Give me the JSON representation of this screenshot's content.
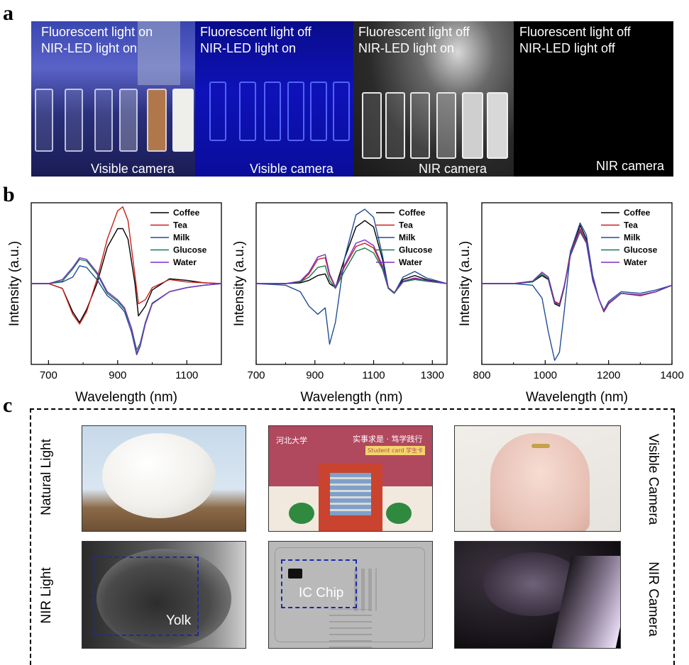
{
  "labels": {
    "a": "a",
    "b": "b",
    "c": "c"
  },
  "panel_a": [
    {
      "line1": "Fluorescent light on",
      "line2": "NIR-LED light on",
      "camera": "Visible camera"
    },
    {
      "line1": "Fluorescent light off",
      "line2": "NIR-LED light on",
      "camera": "Visible camera"
    },
    {
      "line1": "Fluorescent light off",
      "line2": "NIR-LED light on",
      "camera": "NIR camera"
    },
    {
      "line1": "Fluorescent light off",
      "line2": "NIR-LED light off",
      "camera": "NIR camera"
    }
  ],
  "colors": {
    "Coffee": "#000000",
    "Tea": "#cc1f1a",
    "Milk": "#1f4e96",
    "Glucose": "#137a4f",
    "Water": "#7b2fbf"
  },
  "chart_data": [
    {
      "type": "line",
      "xlabel": "Wavelength (nm)",
      "ylabel": "Intensity (a.u.)",
      "xlim": [
        650,
        1200
      ],
      "ylim": [
        -1.0,
        1.0
      ],
      "xticks": [
        700,
        900,
        1100
      ],
      "legend_position": "top-right",
      "series": [
        {
          "name": "Coffee",
          "x": [
            650,
            700,
            740,
            770,
            790,
            810,
            840,
            870,
            900,
            915,
            930,
            950,
            960,
            980,
            1000,
            1050,
            1100,
            1150,
            1200
          ],
          "y": [
            0,
            0,
            -0.06,
            -0.35,
            -0.48,
            -0.32,
            0,
            0.45,
            0.68,
            0.68,
            0.55,
            0,
            -0.4,
            -0.28,
            -0.08,
            0.06,
            0.04,
            0.01,
            0
          ]
        },
        {
          "name": "Tea",
          "x": [
            650,
            700,
            740,
            770,
            790,
            810,
            840,
            870,
            900,
            915,
            930,
            950,
            960,
            980,
            1000,
            1050,
            1100,
            1150,
            1200
          ],
          "y": [
            0,
            0,
            -0.06,
            -0.38,
            -0.5,
            -0.35,
            0.05,
            0.55,
            0.9,
            0.95,
            0.78,
            0.1,
            -0.25,
            -0.2,
            -0.05,
            0.05,
            0.02,
            0.01,
            0
          ]
        },
        {
          "name": "Milk",
          "x": [
            650,
            700,
            740,
            770,
            790,
            810,
            840,
            870,
            900,
            920,
            940,
            955,
            965,
            980,
            1000,
            1050,
            1100,
            1150,
            1200
          ],
          "y": [
            0,
            0,
            0.02,
            0.08,
            0.22,
            0.2,
            0.05,
            -0.15,
            -0.25,
            -0.35,
            -0.6,
            -0.88,
            -0.78,
            -0.5,
            -0.25,
            -0.1,
            -0.05,
            -0.02,
            0
          ]
        },
        {
          "name": "Glucose",
          "x": [
            650,
            700,
            740,
            770,
            790,
            810,
            840,
            870,
            900,
            920,
            940,
            955,
            965,
            980,
            1000,
            1050,
            1100,
            1150,
            1200
          ],
          "y": [
            0,
            0,
            0.03,
            0.18,
            0.3,
            0.28,
            0.12,
            -0.12,
            -0.22,
            -0.32,
            -0.55,
            -0.82,
            -0.74,
            -0.48,
            -0.24,
            -0.1,
            -0.05,
            -0.02,
            0
          ]
        },
        {
          "name": "Water",
          "x": [
            650,
            700,
            740,
            770,
            790,
            810,
            840,
            870,
            900,
            920,
            940,
            955,
            965,
            980,
            1000,
            1050,
            1100,
            1150,
            1200
          ],
          "y": [
            0,
            0,
            0.05,
            0.2,
            0.32,
            0.3,
            0.14,
            -0.1,
            -0.2,
            -0.3,
            -0.55,
            -0.86,
            -0.77,
            -0.5,
            -0.25,
            -0.1,
            -0.05,
            -0.02,
            0
          ]
        }
      ]
    },
    {
      "type": "line",
      "xlabel": "Wavelength (nm)",
      "ylabel": "Intensity (a.u.)",
      "xlim": [
        700,
        1350
      ],
      "ylim": [
        -1.0,
        1.0
      ],
      "xticks": [
        700,
        900,
        1100,
        1300
      ],
      "legend_position": "top-right",
      "series": [
        {
          "name": "Coffee",
          "x": [
            700,
            800,
            850,
            880,
            910,
            935,
            950,
            970,
            1000,
            1040,
            1070,
            1100,
            1130,
            1150,
            1170,
            1200,
            1240,
            1280,
            1350
          ],
          "y": [
            0,
            0,
            0.01,
            0.04,
            0.1,
            0.12,
            0.0,
            -0.05,
            0.3,
            0.7,
            0.78,
            0.7,
            0.3,
            -0.05,
            -0.12,
            0.05,
            0.1,
            0.05,
            0
          ]
        },
        {
          "name": "Tea",
          "x": [
            700,
            800,
            850,
            880,
            910,
            935,
            950,
            970,
            1000,
            1040,
            1070,
            1100,
            1130,
            1150,
            1170,
            1200,
            1240,
            1280,
            1350
          ],
          "y": [
            0,
            0,
            0.02,
            0.12,
            0.3,
            0.32,
            0.1,
            -0.05,
            0.2,
            0.46,
            0.5,
            0.44,
            0.2,
            -0.06,
            -0.12,
            0.02,
            0.06,
            0.03,
            0
          ]
        },
        {
          "name": "Milk",
          "x": [
            700,
            800,
            850,
            880,
            910,
            935,
            950,
            970,
            1000,
            1040,
            1070,
            1100,
            1130,
            1150,
            1170,
            1200,
            1240,
            1280,
            1350
          ],
          "y": [
            0,
            -0.02,
            -0.1,
            -0.28,
            -0.38,
            -0.3,
            -0.75,
            -0.48,
            0.3,
            0.85,
            0.92,
            0.82,
            0.35,
            -0.05,
            -0.12,
            0.08,
            0.15,
            0.07,
            0
          ]
        },
        {
          "name": "Glucose",
          "x": [
            700,
            800,
            850,
            880,
            910,
            935,
            950,
            970,
            1000,
            1040,
            1070,
            1100,
            1130,
            1150,
            1170,
            1200,
            1240,
            1280,
            1350
          ],
          "y": [
            0,
            0,
            0.02,
            0.08,
            0.2,
            0.22,
            0.04,
            -0.06,
            0.15,
            0.4,
            0.44,
            0.38,
            0.18,
            -0.06,
            -0.12,
            0.02,
            0.05,
            0.03,
            0
          ]
        },
        {
          "name": "Water",
          "x": [
            700,
            800,
            850,
            880,
            910,
            935,
            950,
            970,
            1000,
            1040,
            1070,
            1100,
            1130,
            1150,
            1170,
            1200,
            1240,
            1280,
            1350
          ],
          "y": [
            0,
            0,
            0.03,
            0.14,
            0.33,
            0.36,
            0.12,
            -0.04,
            0.22,
            0.5,
            0.54,
            0.47,
            0.22,
            -0.05,
            -0.11,
            0.03,
            0.07,
            0.04,
            0
          ]
        }
      ]
    },
    {
      "type": "line",
      "xlabel": "Wavelength (nm)",
      "ylabel": "Intensity (a.u.)",
      "xlim": [
        800,
        1400
      ],
      "ylim": [
        -1.0,
        1.0
      ],
      "xticks": [
        800,
        1000,
        1200,
        1400
      ],
      "legend_position": "top-right",
      "series": [
        {
          "name": "Coffee",
          "x": [
            800,
            900,
            960,
            990,
            1010,
            1030,
            1045,
            1060,
            1080,
            1110,
            1130,
            1150,
            1170,
            1185,
            1200,
            1240,
            1300,
            1350,
            1400
          ],
          "y": [
            0,
            0,
            0.02,
            0.1,
            0.05,
            -0.25,
            -0.28,
            -0.05,
            0.4,
            0.72,
            0.55,
            0.05,
            -0.2,
            -0.35,
            -0.25,
            -0.12,
            -0.15,
            -0.1,
            -0.02
          ]
        },
        {
          "name": "Tea",
          "x": [
            800,
            900,
            960,
            990,
            1010,
            1030,
            1045,
            1060,
            1080,
            1110,
            1130,
            1150,
            1170,
            1185,
            1200,
            1240,
            1300,
            1350,
            1400
          ],
          "y": [
            0,
            0,
            0.03,
            0.14,
            0.08,
            -0.22,
            -0.25,
            -0.03,
            0.38,
            0.68,
            0.52,
            0.04,
            -0.2,
            -0.35,
            -0.25,
            -0.12,
            -0.15,
            -0.1,
            -0.02
          ]
        },
        {
          "name": "Milk",
          "x": [
            800,
            900,
            960,
            990,
            1010,
            1030,
            1045,
            1060,
            1080,
            1110,
            1130,
            1150,
            1170,
            1185,
            1200,
            1240,
            1300,
            1350,
            1400
          ],
          "y": [
            0,
            0,
            -0.02,
            -0.18,
            -0.6,
            -0.95,
            -0.85,
            -0.35,
            0.4,
            0.75,
            0.6,
            0.1,
            -0.2,
            -0.33,
            -0.22,
            -0.1,
            -0.12,
            -0.08,
            -0.02
          ]
        },
        {
          "name": "Glucose",
          "x": [
            800,
            900,
            960,
            990,
            1010,
            1030,
            1045,
            1060,
            1080,
            1110,
            1130,
            1150,
            1170,
            1185,
            1200,
            1240,
            1300,
            1350,
            1400
          ],
          "y": [
            0,
            0,
            0.02,
            0.12,
            0.06,
            -0.24,
            -0.26,
            -0.04,
            0.35,
            0.64,
            0.5,
            0.04,
            -0.2,
            -0.34,
            -0.24,
            -0.12,
            -0.14,
            -0.1,
            -0.02
          ]
        },
        {
          "name": "Water",
          "x": [
            800,
            900,
            960,
            990,
            1010,
            1030,
            1045,
            1060,
            1080,
            1110,
            1130,
            1150,
            1170,
            1185,
            1200,
            1240,
            1300,
            1350,
            1400
          ],
          "y": [
            0,
            0,
            0.03,
            0.14,
            0.08,
            -0.23,
            -0.26,
            -0.03,
            0.36,
            0.66,
            0.51,
            0.04,
            -0.2,
            -0.34,
            -0.24,
            -0.12,
            -0.14,
            -0.1,
            -0.02
          ]
        }
      ]
    }
  ],
  "panel_c": {
    "row_labels": [
      "Natural Light",
      "NIR Light"
    ],
    "camera_labels": [
      "Visible Camera",
      "NIR Camera"
    ],
    "roi_labels": [
      "Yolk",
      "IC Chip"
    ],
    "card_logo_text": "河北大学",
    "card_slogan": "实事求是 · 笃学践行",
    "card_banner": "Student card 学生卡"
  }
}
